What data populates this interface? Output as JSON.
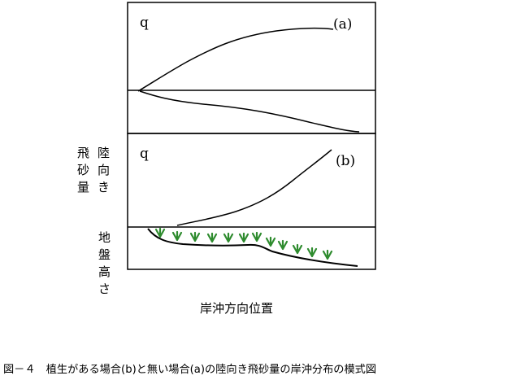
{
  "panel_a": {
    "q_label": "q",
    "tag": "(a)"
  },
  "panel_b": {
    "q_label": "q",
    "tag": "(b)"
  },
  "left_labels": {
    "col1": [
      "飛",
      "砂",
      "量"
    ],
    "col2": [
      "陸",
      "向",
      "き"
    ],
    "ground": [
      "地",
      "盤",
      "高",
      "さ"
    ]
  },
  "x_axis_label": "岸沖方向位置",
  "caption": "図－４　植生がある場合(b)と無い場合(a)の陸向き飛砂量の岸沖分布の模式図",
  "colors": {
    "line": "#000000",
    "vegetation": "#2e8b2e"
  },
  "vegetation_tufts": 12
}
